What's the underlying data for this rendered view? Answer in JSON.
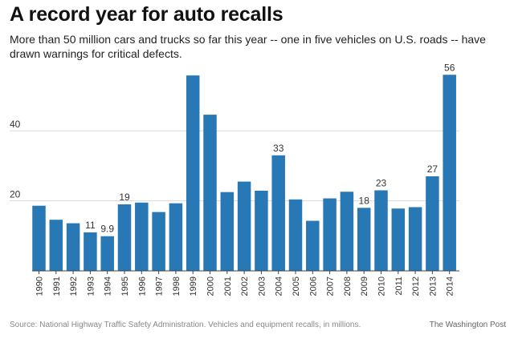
{
  "title": "A record year for auto recalls",
  "subtitle": "More than 50 million cars and trucks so far this year -- one in five vehicles on U.S. roads -- have drawn warnings for critical defects.",
  "source": "Source: National Highway Traffic Safety Administration. Vehicles and equipment recalls, in millions.",
  "credit": "The Washington Post",
  "colors": {
    "bar": "#2878b5",
    "grid": "#d8d8d8",
    "axis": "#444444"
  },
  "chart_data": {
    "type": "bar",
    "title": "A record year for auto recalls",
    "categories": [
      "1990",
      "1991",
      "1992",
      "1993",
      "1994",
      "1995",
      "1996",
      "1997",
      "1998",
      "1999",
      "2000",
      "2001",
      "2002",
      "2003",
      "2004",
      "2005",
      "2006",
      "2007",
      "2008",
      "2009",
      "2010",
      "2011",
      "2012",
      "2013",
      "2014"
    ],
    "values": [
      18.6,
      14.6,
      13.6,
      11,
      9.9,
      19,
      19.5,
      16.8,
      19.3,
      55.8,
      44.6,
      22.5,
      25.5,
      22.9,
      33,
      20.4,
      14.3,
      20.7,
      22.6,
      18,
      23,
      17.8,
      18.2,
      27,
      56
    ],
    "data_labels": {
      "1995": "19",
      "1993": "11",
      "1994": "9.9",
      "2004": "33",
      "2009": "18",
      "2010": "23",
      "2013": "27",
      "2014": "56"
    },
    "yticks": [
      20,
      40
    ],
    "ylim": [
      0,
      60
    ],
    "xlabel": "",
    "ylabel": "",
    "grid": true
  }
}
